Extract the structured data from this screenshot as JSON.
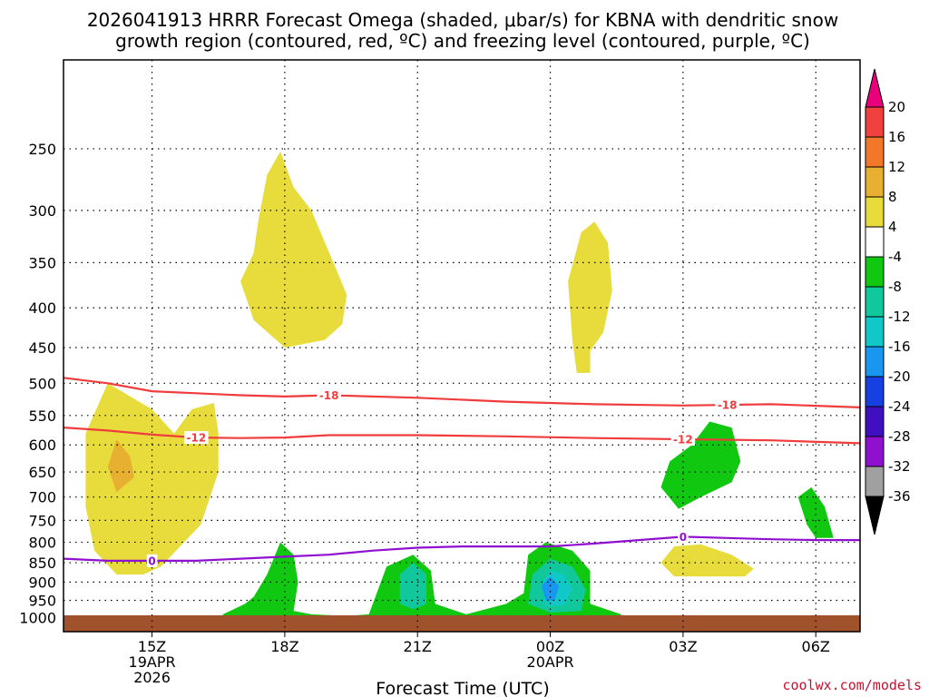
{
  "title_line1": "2026041913 HRRR Forecast Omega (shaded, μbar/s) for KBNA with dendritic snow",
  "title_line2": "growth region (contoured, red, ºC) and freezing level (contoured, purple, ºC)",
  "xaxis_label": "Forecast Time (UTC)",
  "credit": "coolwx.com/models",
  "chart_data": {
    "type": "time-height cross section",
    "title": "2026041913 HRRR Forecast Omega (shaded, μbar/s) for KBNA with dendritic snow growth region (contoured, red, ºC) and freezing level (contoured, purple, ºC)",
    "xlabel": "Forecast Time (UTC)",
    "ylabel": "",
    "x_range_hours": [
      13.0,
      31.0
    ],
    "y_range_hPa": [
      1000,
      200
    ],
    "y_ticks": [
      250,
      300,
      350,
      400,
      450,
      500,
      550,
      600,
      650,
      700,
      750,
      800,
      850,
      900,
      950,
      1000
    ],
    "x_ticks": [
      {
        "hour": 15,
        "lines": [
          "15Z",
          "19APR",
          "2026"
        ]
      },
      {
        "hour": 18,
        "lines": [
          "18Z"
        ]
      },
      {
        "hour": 21,
        "lines": [
          "21Z"
        ]
      },
      {
        "hour": 24,
        "lines": [
          "00Z",
          "20APR"
        ]
      },
      {
        "hour": 27,
        "lines": [
          "03Z"
        ]
      },
      {
        "hour": 30,
        "lines": [
          "06Z"
        ]
      }
    ],
    "grid": true,
    "colorbar": {
      "labels": [
        "20",
        "16",
        "12",
        "8",
        "4",
        "-4",
        "-8",
        "-12",
        "-16",
        "-20",
        "-24",
        "-28",
        "-32",
        "-36"
      ],
      "colors": [
        "#e8007a",
        "#f04040",
        "#f07828",
        "#e8b030",
        "#e8dc3c",
        "#ffffff",
        "#10c810",
        "#10c89c",
        "#10c8c8",
        "#1896f0",
        "#1840e0",
        "#4010c0",
        "#9010d0",
        "#a0a0a0",
        "#000000"
      ]
    },
    "omega_regions": [
      {
        "level": "4 to 8 (ascent-neutral, yellow)",
        "value": 6,
        "color": "#e8dc3c",
        "polygon": [
          [
            17.0,
            370
          ],
          [
            17.3,
            340
          ],
          [
            17.4,
            310
          ],
          [
            17.6,
            270
          ],
          [
            17.9,
            252
          ],
          [
            18.2,
            280
          ],
          [
            18.6,
            300
          ],
          [
            19.1,
            350
          ],
          [
            19.4,
            385
          ],
          [
            19.3,
            420
          ],
          [
            18.9,
            440
          ],
          [
            18.0,
            450
          ],
          [
            17.3,
            415
          ]
        ]
      },
      {
        "level": "4 to 8",
        "value": 6,
        "color": "#e8dc3c",
        "polygon": [
          [
            24.4,
            370
          ],
          [
            24.7,
            320
          ],
          [
            25.0,
            310
          ],
          [
            25.3,
            330
          ],
          [
            25.4,
            380
          ],
          [
            25.2,
            430
          ],
          [
            24.9,
            455
          ],
          [
            24.9,
            485
          ],
          [
            24.6,
            485
          ],
          [
            24.5,
            440
          ]
        ]
      },
      {
        "level": "4 to 8",
        "value": 6,
        "color": "#e8dc3c",
        "polygon": [
          [
            13.5,
            580
          ],
          [
            14.0,
            500
          ],
          [
            15.0,
            540
          ],
          [
            15.5,
            580
          ],
          [
            15.9,
            540
          ],
          [
            16.4,
            530
          ],
          [
            16.5,
            580
          ],
          [
            16.5,
            650
          ],
          [
            16.1,
            760
          ],
          [
            15.2,
            860
          ],
          [
            14.8,
            880
          ],
          [
            14.2,
            880
          ],
          [
            13.7,
            820
          ],
          [
            13.5,
            720
          ]
        ]
      },
      {
        "level": "8 to 12",
        "value": 10,
        "color": "#e8b030",
        "polygon": [
          [
            14.0,
            640
          ],
          [
            14.2,
            590
          ],
          [
            14.5,
            620
          ],
          [
            14.6,
            660
          ],
          [
            14.2,
            690
          ]
        ]
      },
      {
        "level": "4 to 8",
        "value": 6,
        "color": "#e8dc3c",
        "polygon": [
          [
            26.5,
            850
          ],
          [
            26.8,
            810
          ],
          [
            27.4,
            805
          ],
          [
            28.1,
            830
          ],
          [
            28.6,
            865
          ],
          [
            28.4,
            885
          ],
          [
            27.6,
            885
          ],
          [
            26.8,
            885
          ]
        ]
      },
      {
        "level": "-4 to -8 (descent, green)",
        "value": -6,
        "color": "#10c810",
        "polygon": [
          [
            26.5,
            680
          ],
          [
            26.7,
            630
          ],
          [
            27.2,
            600
          ],
          [
            27.6,
            560
          ],
          [
            28.1,
            570
          ],
          [
            28.3,
            630
          ],
          [
            28.1,
            670
          ],
          [
            27.4,
            700
          ],
          [
            26.9,
            725
          ]
        ]
      },
      {
        "level": "-4 to -8",
        "value": -6,
        "color": "#10c810",
        "polygon": [
          [
            29.6,
            700
          ],
          [
            29.9,
            680
          ],
          [
            30.2,
            720
          ],
          [
            30.4,
            790
          ],
          [
            30.0,
            790
          ],
          [
            29.8,
            760
          ]
        ]
      },
      {
        "level": "-4 to -8",
        "value": -6,
        "color": "#10c810",
        "polygon": [
          [
            16.6,
            990
          ],
          [
            17.1,
            960
          ],
          [
            17.3,
            940
          ],
          [
            17.6,
            880
          ],
          [
            17.9,
            800
          ],
          [
            18.2,
            830
          ],
          [
            18.3,
            900
          ],
          [
            18.2,
            980
          ],
          [
            18.6,
            990
          ],
          [
            19.4,
            995
          ],
          [
            19.9,
            990
          ],
          [
            20.3,
            860
          ],
          [
            20.9,
            830
          ],
          [
            21.3,
            870
          ],
          [
            21.4,
            960
          ],
          [
            22.1,
            990
          ],
          [
            23.0,
            960
          ],
          [
            23.4,
            930
          ],
          [
            23.5,
            830
          ],
          [
            23.9,
            800
          ],
          [
            24.5,
            820
          ],
          [
            24.9,
            870
          ],
          [
            24.9,
            960
          ],
          [
            25.6,
            990
          ],
          [
            25.6,
            1000
          ],
          [
            16.6,
            1000
          ]
        ]
      },
      {
        "level": "-8 to -12",
        "value": -10,
        "color": "#10c89c",
        "polygon": [
          [
            20.6,
            880
          ],
          [
            20.9,
            850
          ],
          [
            21.2,
            880
          ],
          [
            21.2,
            960
          ],
          [
            20.9,
            975
          ],
          [
            20.6,
            960
          ]
        ]
      },
      {
        "level": "-8 to -12",
        "value": -10,
        "color": "#10c89c",
        "polygon": [
          [
            23.6,
            880
          ],
          [
            24.0,
            840
          ],
          [
            24.5,
            860
          ],
          [
            24.8,
            920
          ],
          [
            24.7,
            980
          ],
          [
            24.0,
            985
          ],
          [
            23.5,
            960
          ]
        ]
      },
      {
        "level": "-12 to -16",
        "value": -14,
        "color": "#10c8c8",
        "polygon": [
          [
            23.8,
            910
          ],
          [
            24.0,
            870
          ],
          [
            24.3,
            880
          ],
          [
            24.5,
            920
          ],
          [
            24.3,
            965
          ],
          [
            23.9,
            965
          ]
        ]
      },
      {
        "level": "-16 to -20",
        "value": -18,
        "color": "#1896f0",
        "polygon": [
          [
            23.8,
            910
          ],
          [
            24.0,
            885
          ],
          [
            24.2,
            910
          ],
          [
            24.1,
            950
          ],
          [
            23.9,
            950
          ]
        ]
      }
    ],
    "dendritic_isotherms_red": [
      {
        "temp_C": -18,
        "label": "-18",
        "points": [
          [
            13.0,
            492
          ],
          [
            14.0,
            500
          ],
          [
            15.0,
            512
          ],
          [
            16.0,
            515
          ],
          [
            17.0,
            518
          ],
          [
            18.0,
            520
          ],
          [
            19.0,
            518
          ],
          [
            21.0,
            522
          ],
          [
            23.0,
            528
          ],
          [
            25.0,
            532
          ],
          [
            27.0,
            534
          ],
          [
            29.0,
            532
          ],
          [
            31.0,
            537
          ]
        ]
      },
      {
        "temp_C": -12,
        "label": "-12",
        "points": [
          [
            13.0,
            570
          ],
          [
            14.0,
            575
          ],
          [
            15.0,
            582
          ],
          [
            16.0,
            587
          ],
          [
            17.0,
            588
          ],
          [
            18.0,
            587
          ],
          [
            19.0,
            583
          ],
          [
            21.0,
            583
          ],
          [
            23.0,
            585
          ],
          [
            25.0,
            588
          ],
          [
            27.0,
            590
          ],
          [
            29.0,
            592
          ],
          [
            31.0,
            597
          ]
        ]
      }
    ],
    "freezing_level_purple": {
      "temp_C": 0,
      "label": "0",
      "points": [
        [
          13.0,
          840
        ],
        [
          14.0,
          845
        ],
        [
          15.0,
          845
        ],
        [
          16.0,
          845
        ],
        [
          17.0,
          840
        ],
        [
          18.0,
          835
        ],
        [
          19.0,
          830
        ],
        [
          20.0,
          820
        ],
        [
          21.0,
          813
        ],
        [
          22.0,
          810
        ],
        [
          23.0,
          810
        ],
        [
          24.0,
          810
        ],
        [
          25.0,
          803
        ],
        [
          26.0,
          795
        ],
        [
          27.0,
          787
        ],
        [
          28.0,
          790
        ],
        [
          29.0,
          793
        ],
        [
          30.0,
          795
        ],
        [
          31.0,
          795
        ]
      ]
    }
  }
}
